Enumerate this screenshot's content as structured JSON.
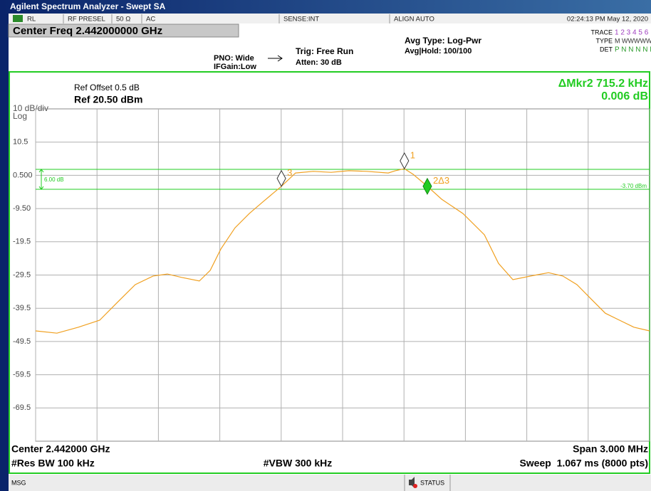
{
  "window_title": "Agilent Spectrum Analyzer - Swept SA",
  "status_bar": {
    "items": [
      "RL",
      "RF PRESEL",
      "50 Ω",
      "AC",
      "SENSE:INT",
      "ALIGN AUTO",
      "02:24:13 PM May 12, 2020"
    ]
  },
  "settings": {
    "center_freq": "Center Freq 2.442000000 GHz",
    "pno": "PNO: Wide",
    "ifgain": "IFGain:Low",
    "trig": "Trig: Free Run",
    "atten": "Atten: 30 dB",
    "avg_type": "Avg Type: Log-Pwr",
    "avg_hold": "Avg|Hold: 100/100",
    "trace_label": "TRACE",
    "trace_value": "1 2 3 4 5 6",
    "type_label": "TYPE",
    "type_value": "M WWWWW",
    "det_label": "DET",
    "det_value": "P N N N N N"
  },
  "chart_data": {
    "type": "line",
    "ref_offset": "Ref Offset 0.5 dB",
    "ref_level": "Ref 20.50 dBm",
    "scale": "10 dB/div",
    "scale_type": "Log",
    "marker_readout": "ΔMkr2 715.2 kHz",
    "marker_delta": "0.006 dB",
    "xlim": [
      2.4405,
      2.4435
    ],
    "xticks": [
      2.4405,
      2.4408,
      2.4411,
      2.4414,
      2.4417,
      2.442,
      2.4423,
      2.4426,
      2.4429,
      2.4432,
      2.4435
    ],
    "ylim": [
      -79.5,
      20.5
    ],
    "yticks": [
      10.5,
      {
        "value": 0.5,
        "label": "0.500"
      },
      {
        "value": -9.5,
        "label": "-9.50"
      },
      -19.5,
      -29.5,
      -39.5,
      -49.5,
      -59.5,
      -69.5
    ],
    "grid": true,
    "display_line": {
      "value": -3.7,
      "label": "-3.70 dBm"
    },
    "display_offset": {
      "value": 6,
      "label": "6.00 dB"
    },
    "x": [
      2.4405,
      2.440604,
      2.440709,
      2.440813,
      2.4409,
      2.440987,
      2.441074,
      2.441144,
      2.441213,
      2.4413,
      2.441353,
      2.441405,
      2.441474,
      2.441544,
      2.441614,
      2.441701,
      2.44177,
      2.441857,
      2.441944,
      2.442031,
      2.442118,
      2.442223,
      2.442258,
      2.442302,
      2.442345,
      2.442414,
      2.442484,
      2.442588,
      2.442693,
      2.442762,
      2.442832,
      2.442919,
      2.443006,
      2.443076,
      2.443145,
      2.443214,
      2.443284,
      2.443353,
      2.443423,
      2.4435
    ],
    "series": [
      {
        "color": "#f0a020",
        "values": [
          -46.3,
          -47.0,
          -45.2,
          -43.1,
          -37.7,
          -32.4,
          -29.8,
          -29.2,
          -30.2,
          -31.3,
          -28.1,
          -21.7,
          -15.3,
          -11.0,
          -7.3,
          -2.8,
          1.2,
          1.7,
          1.4,
          1.9,
          1.7,
          1.2,
          1.9,
          2.5,
          0.8,
          -2.8,
          -6.7,
          -11.0,
          -17.4,
          -26.0,
          -30.9,
          -29.8,
          -28.8,
          -29.8,
          -32.4,
          -36.7,
          -41.0,
          -43.1,
          -45.2,
          -46.3
        ]
      }
    ],
    "markers": [
      {
        "label": "1",
        "x": 2.442302,
        "y": 2.5,
        "style": "outline"
      },
      {
        "label": "2Δ3",
        "x": 2.442414,
        "y": -2.8,
        "style": "active"
      },
      {
        "label": "3",
        "x": 2.441701,
        "y": -2.8,
        "style": "outline"
      }
    ]
  },
  "footer": {
    "center": "Center 2.442000 GHz",
    "res_bw": "#Res BW 100 kHz",
    "vbw": "#VBW 300 kHz",
    "span": "Span 3.000 MHz",
    "sweep": "Sweep  1.067 ms (8000 pts)"
  },
  "bottom_bar": {
    "msg": "MSG",
    "status": "STATUS"
  }
}
